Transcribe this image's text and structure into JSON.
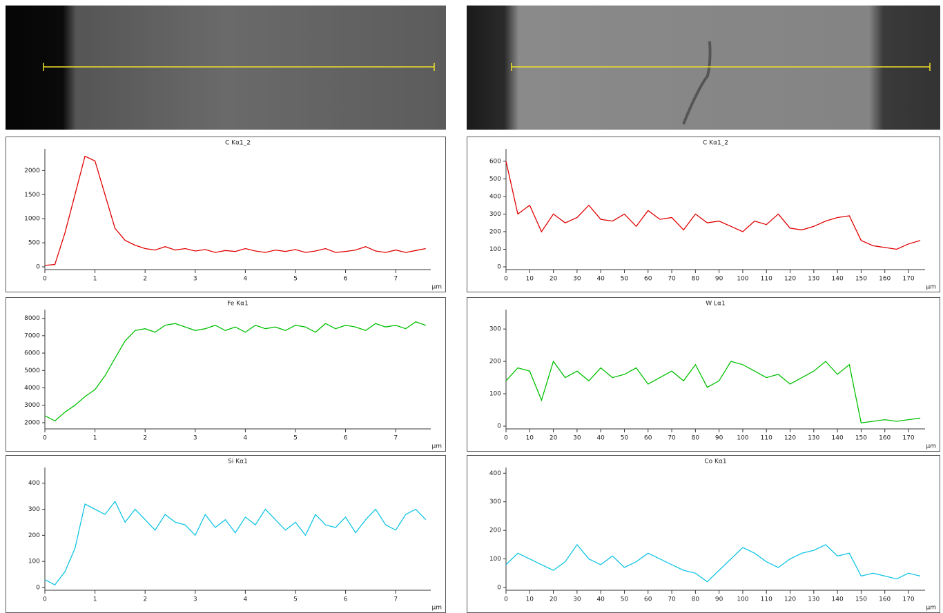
{
  "chart_data": [
    {
      "type": "line",
      "title": "C Kα1_2",
      "x_label": "µm",
      "color": "#e00000",
      "x": [
        0,
        0.2,
        0.4,
        0.6,
        0.8,
        1.0,
        1.2,
        1.4,
        1.6,
        1.8,
        2.0,
        2.2,
        2.4,
        2.6,
        2.8,
        3.0,
        3.2,
        3.4,
        3.6,
        3.8,
        4.0,
        4.2,
        4.4,
        4.6,
        4.8,
        5.0,
        5.2,
        5.4,
        5.6,
        5.8,
        6.0,
        6.2,
        6.4,
        6.6,
        6.8,
        7.0,
        7.2,
        7.4,
        7.6
      ],
      "values": [
        30,
        50,
        700,
        1500,
        2300,
        2200,
        1500,
        800,
        550,
        450,
        380,
        350,
        420,
        350,
        380,
        330,
        360,
        300,
        340,
        320,
        380,
        330,
        300,
        350,
        320,
        360,
        300,
        330,
        380,
        300,
        320,
        350,
        420,
        330,
        300,
        350,
        300,
        340,
        380
      ],
      "xlim": [
        0,
        7.7
      ],
      "xticks": [
        0,
        1,
        2,
        3,
        4,
        5,
        6,
        7
      ],
      "ylim": [
        0,
        2450
      ],
      "yticks": [
        0,
        500,
        1000,
        1500,
        2000
      ]
    },
    {
      "type": "line",
      "title": "Fe Kα1",
      "x_label": "µm",
      "color": "#00c000",
      "x": [
        0,
        0.2,
        0.4,
        0.6,
        0.8,
        1.0,
        1.2,
        1.4,
        1.6,
        1.8,
        2.0,
        2.2,
        2.4,
        2.6,
        2.8,
        3.0,
        3.2,
        3.4,
        3.6,
        3.8,
        4.0,
        4.2,
        4.4,
        4.6,
        4.8,
        5.0,
        5.2,
        5.4,
        5.6,
        5.8,
        6.0,
        6.2,
        6.4,
        6.6,
        6.8,
        7.0,
        7.2,
        7.4,
        7.6
      ],
      "values": [
        2400,
        2100,
        2600,
        3000,
        3500,
        3900,
        4700,
        5700,
        6700,
        7300,
        7400,
        7200,
        7600,
        7700,
        7500,
        7300,
        7400,
        7600,
        7300,
        7500,
        7200,
        7600,
        7400,
        7500,
        7300,
        7600,
        7500,
        7200,
        7700,
        7400,
        7600,
        7500,
        7300,
        7700,
        7500,
        7600,
        7400,
        7800,
        7600
      ],
      "xlim": [
        0,
        7.7
      ],
      "xticks": [
        0,
        1,
        2,
        3,
        4,
        5,
        6,
        7
      ],
      "ylim": [
        1800,
        8500
      ],
      "yticks": [
        2000,
        3000,
        4000,
        5000,
        6000,
        7000,
        8000
      ]
    },
    {
      "type": "line",
      "title": "Si Kα1",
      "x_label": "µm",
      "color": "#10c4e4",
      "x": [
        0,
        0.2,
        0.4,
        0.6,
        0.8,
        1.0,
        1.2,
        1.4,
        1.6,
        1.8,
        2.0,
        2.2,
        2.4,
        2.6,
        2.8,
        3.0,
        3.2,
        3.4,
        3.6,
        3.8,
        4.0,
        4.2,
        4.4,
        4.6,
        4.8,
        5.0,
        5.2,
        5.4,
        5.6,
        5.8,
        6.0,
        6.2,
        6.4,
        6.6,
        6.8,
        7.0,
        7.2,
        7.4,
        7.6
      ],
      "values": [
        30,
        10,
        60,
        150,
        320,
        300,
        280,
        330,
        250,
        300,
        260,
        220,
        280,
        250,
        240,
        200,
        280,
        230,
        260,
        210,
        270,
        240,
        300,
        260,
        220,
        250,
        200,
        280,
        240,
        230,
        270,
        210,
        260,
        300,
        240,
        220,
        280,
        300,
        260
      ],
      "xlim": [
        0,
        7.7
      ],
      "xticks": [
        0,
        1,
        2,
        3,
        4,
        5,
        6,
        7
      ],
      "ylim": [
        0,
        460
      ],
      "yticks": [
        0,
        100,
        200,
        300,
        400
      ]
    },
    {
      "type": "line",
      "title": "C Kα1_2",
      "x_label": "µm",
      "color": "#e00000",
      "x": [
        0,
        5,
        10,
        15,
        20,
        25,
        30,
        35,
        40,
        45,
        50,
        55,
        60,
        65,
        70,
        75,
        80,
        85,
        90,
        95,
        100,
        105,
        110,
        115,
        120,
        125,
        130,
        135,
        140,
        145,
        150,
        155,
        160,
        165,
        170,
        175
      ],
      "values": [
        600,
        300,
        350,
        200,
        300,
        250,
        280,
        350,
        270,
        260,
        300,
        230,
        320,
        270,
        280,
        210,
        300,
        250,
        260,
        230,
        200,
        260,
        240,
        300,
        220,
        210,
        230,
        260,
        280,
        290,
        150,
        120,
        110,
        100,
        130,
        150
      ],
      "xlim": [
        0,
        177
      ],
      "xticks": [
        0,
        10,
        20,
        30,
        40,
        50,
        60,
        70,
        80,
        90,
        100,
        110,
        120,
        130,
        140,
        150,
        160,
        170
      ],
      "ylim": [
        0,
        670
      ],
      "yticks": [
        0,
        100,
        200,
        300,
        400,
        500,
        600
      ]
    },
    {
      "type": "line",
      "title": "W Lα1",
      "x_label": "µm",
      "color": "#00c000",
      "x": [
        0,
        5,
        10,
        15,
        20,
        25,
        30,
        35,
        40,
        45,
        50,
        55,
        60,
        65,
        70,
        75,
        80,
        85,
        90,
        95,
        100,
        105,
        110,
        115,
        120,
        125,
        130,
        135,
        140,
        145,
        150,
        155,
        160,
        165,
        170,
        175
      ],
      "values": [
        140,
        180,
        170,
        80,
        200,
        150,
        170,
        140,
        180,
        150,
        160,
        180,
        130,
        150,
        170,
        140,
        190,
        120,
        140,
        200,
        190,
        170,
        150,
        160,
        130,
        150,
        170,
        200,
        160,
        190,
        10,
        15,
        20,
        15,
        20,
        25
      ],
      "xlim": [
        0,
        177
      ],
      "xticks": [
        0,
        10,
        20,
        30,
        40,
        50,
        60,
        70,
        80,
        90,
        100,
        110,
        120,
        130,
        140,
        150,
        160,
        170
      ],
      "ylim": [
        0,
        360
      ],
      "yticks": [
        0,
        100,
        200,
        300
      ]
    },
    {
      "type": "line",
      "title": "Co Kα1",
      "x_label": "µm",
      "color": "#10c4e4",
      "x": [
        0,
        5,
        10,
        15,
        20,
        25,
        30,
        35,
        40,
        45,
        50,
        55,
        60,
        65,
        70,
        75,
        80,
        85,
        90,
        95,
        100,
        105,
        110,
        115,
        120,
        125,
        130,
        135,
        140,
        145,
        150,
        155,
        160,
        165,
        170,
        175
      ],
      "values": [
        80,
        120,
        100,
        80,
        60,
        90,
        150,
        100,
        80,
        110,
        70,
        90,
        120,
        100,
        80,
        60,
        50,
        20,
        60,
        100,
        140,
        120,
        90,
        70,
        100,
        120,
        130,
        150,
        110,
        120,
        40,
        50,
        40,
        30,
        50,
        40
      ],
      "xlim": [
        0,
        177
      ],
      "xticks": [
        0,
        10,
        20,
        30,
        40,
        50,
        60,
        70,
        80,
        90,
        100,
        110,
        120,
        130,
        140,
        150,
        160,
        170
      ],
      "ylim": [
        0,
        420
      ],
      "yticks": [
        0,
        100,
        200,
        300,
        400
      ]
    }
  ]
}
